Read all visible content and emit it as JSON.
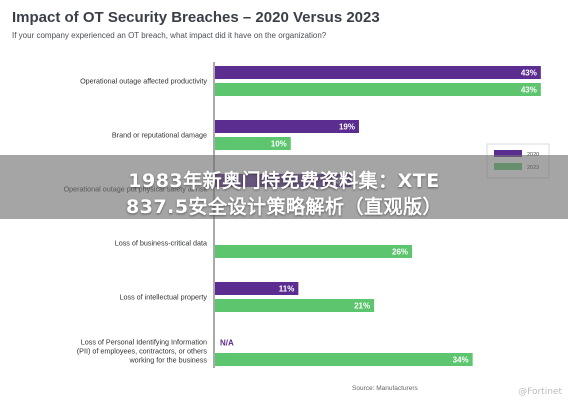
{
  "chart_data": {
    "type": "bar",
    "title": "Impact of OT Security Breaches – 2020 Versus 2023",
    "subtitle": "If your company experienced an OT breach, what impact did it have on the organization?",
    "categories": [
      "Operational outage affected productivity",
      "Brand or reputational damage",
      "Operational outage put physical safety at risk",
      "Loss of business-critical data",
      "Loss of intellectual property",
      "Loss of Personal Identifying Information (PII) of employees, contractors, or others working for the business"
    ],
    "category_lines": [
      [
        "Operational outage affected productivity"
      ],
      [
        "Brand or reputational damage"
      ],
      [
        "Operational outage put physical safety at risk"
      ],
      [
        "Loss of business-critical data"
      ],
      [
        "Loss of intellectual property"
      ],
      [
        "Loss of Personal Identifying Information",
        "(PII) of employees, contractors, or others",
        "working for the business"
      ]
    ],
    "series": [
      {
        "name": "2020",
        "values": [
          43,
          19,
          18,
          null,
          11,
          null
        ],
        "labels": [
          "43%",
          "19%",
          "18%",
          "",
          "11%",
          "N/A"
        ],
        "color": "#5c2d91"
      },
      {
        "name": "2023",
        "values": [
          43,
          10,
          null,
          26,
          21,
          34
        ],
        "labels": [
          "43%",
          "10%",
          "",
          "26%",
          "21%",
          "34%"
        ],
        "color": "#5cc56e"
      }
    ],
    "xlim": [
      0,
      45
    ],
    "legend_position": "right",
    "source": "Source: Manufacturers"
  },
  "overlay": {
    "line1": "1983年新奥门特免费资料集：XTE",
    "line2": "837.5安全设计策略解析（直观版）"
  },
  "watermark": "@Fortinet"
}
